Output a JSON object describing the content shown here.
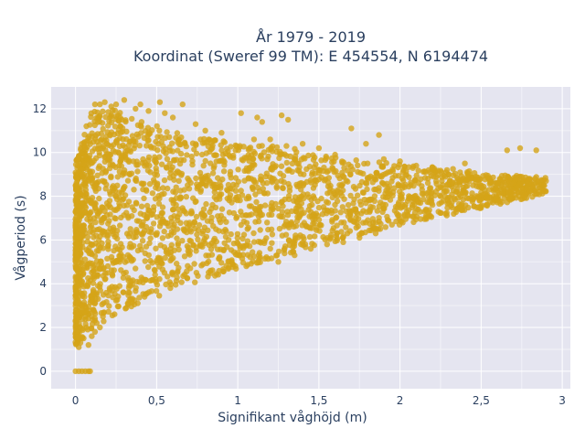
{
  "chart_data": {
    "type": "scatter",
    "title_line1": "År 1979 - 2019",
    "title_line2": "Koordinat (Sweref 99 TM): E 454554, N 6194474",
    "xlabel": "Signifikant våghöjd (m)",
    "ylabel": "Vågperiod (s)",
    "xlim": [
      -0.15,
      3.05
    ],
    "ylim": [
      -0.8,
      13.0
    ],
    "x_ticks": [
      0,
      0.5,
      1,
      1.5,
      2,
      2.5,
      3
    ],
    "x_tick_labels": [
      "0",
      "0,5",
      "1",
      "1,5",
      "2",
      "2,5",
      "3"
    ],
    "y_ticks": [
      0,
      2,
      4,
      6,
      8,
      10,
      12
    ],
    "y_tick_labels": [
      "0",
      "2",
      "4",
      "6",
      "8",
      "10",
      "12"
    ],
    "grid": true,
    "marker_color": "#d4a418",
    "background_color": "#e5e5f0",
    "series": [
      {
        "name": "",
        "envelope": {
          "x": [
            0.0,
            0.05,
            0.1,
            0.2,
            0.3,
            0.5,
            0.7,
            1.0,
            1.3,
            1.6,
            2.0,
            2.3,
            2.6,
            2.9
          ],
          "y_low": [
            1.1,
            1.5,
            1.8,
            2.3,
            2.7,
            3.3,
            3.9,
            4.6,
            5.3,
            5.9,
            6.6,
            7.1,
            7.6,
            8.1
          ],
          "y_high": [
            9.6,
            11.0,
            12.0,
            12.1,
            12.0,
            11.3,
            10.8,
            10.5,
            10.3,
            9.8,
            9.5,
            9.3,
            9.0,
            8.9
          ]
        },
        "points": [
          [
            0.0,
            0.0
          ],
          [
            0.02,
            0.0
          ],
          [
            0.04,
            0.0
          ],
          [
            0.06,
            0.0
          ],
          [
            0.08,
            0.0
          ],
          [
            0.09,
            0.0
          ],
          [
            0.15,
            12.2
          ],
          [
            0.18,
            12.3
          ],
          [
            0.22,
            12.1
          ],
          [
            0.3,
            12.4
          ],
          [
            0.37,
            12.0
          ],
          [
            0.52,
            12.3
          ],
          [
            0.66,
            12.2
          ],
          [
            0.74,
            11.3
          ],
          [
            1.02,
            11.8
          ],
          [
            1.12,
            11.6
          ],
          [
            1.15,
            11.4
          ],
          [
            1.27,
            11.7
          ],
          [
            1.31,
            11.5
          ],
          [
            1.7,
            11.1
          ],
          [
            1.79,
            10.4
          ],
          [
            1.87,
            10.8
          ],
          [
            2.66,
            10.1
          ],
          [
            2.74,
            10.2
          ],
          [
            2.84,
            10.1
          ],
          [
            2.8,
            8.8
          ],
          [
            2.85,
            8.7
          ],
          [
            2.9,
            8.7
          ],
          [
            2.7,
            8.6
          ],
          [
            2.6,
            8.6
          ],
          [
            2.5,
            8.4
          ],
          [
            2.55,
            8.3
          ],
          [
            2.45,
            8.5
          ],
          [
            2.35,
            8.2
          ],
          [
            2.25,
            8.0
          ],
          [
            2.2,
            7.6
          ],
          [
            2.15,
            7.3
          ],
          [
            2.05,
            7.1
          ],
          [
            1.95,
            6.7
          ],
          [
            2.3,
            9.0
          ],
          [
            2.4,
            9.5
          ],
          [
            2.2,
            9.2
          ],
          [
            2.1,
            9.4
          ],
          [
            2.0,
            9.6
          ],
          [
            1.9,
            9.7
          ],
          [
            1.8,
            9.5
          ],
          [
            1.6,
            9.9
          ],
          [
            1.5,
            10.2
          ],
          [
            1.4,
            10.4
          ],
          [
            1.3,
            10.3
          ],
          [
            1.2,
            10.6
          ],
          [
            1.1,
            10.6
          ],
          [
            0.9,
            10.9
          ],
          [
            0.8,
            11.0
          ],
          [
            0.6,
            11.6
          ],
          [
            0.55,
            11.8
          ],
          [
            0.45,
            11.9
          ],
          [
            0.4,
            12.2
          ],
          [
            0.25,
            12.2
          ],
          [
            0.12,
            12.2
          ],
          [
            1.85,
            6.3
          ],
          [
            1.75,
            6.1
          ],
          [
            1.65,
            5.9
          ],
          [
            1.55,
            5.8
          ],
          [
            1.45,
            5.6
          ],
          [
            1.35,
            5.3
          ],
          [
            1.25,
            5.0
          ],
          [
            0.02,
            1.1
          ],
          [
            0.03,
            1.3
          ],
          [
            0.05,
            1.5
          ],
          [
            0.08,
            1.2
          ],
          [
            0.1,
            1.6
          ],
          [
            0.12,
            1.8
          ],
          [
            0.15,
            2.0
          ]
        ]
      }
    ]
  }
}
